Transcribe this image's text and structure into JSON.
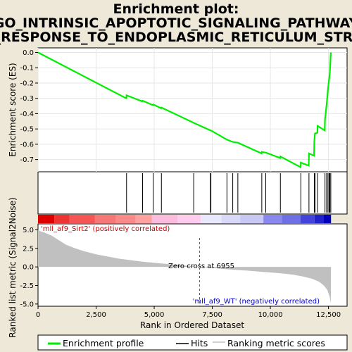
{
  "chart_data": {
    "type": "line",
    "title_line1": "Enrichment plot:",
    "title_line2": "GO_INTRINSIC_APOPTOTIC_SIGNALING_PATHWAY",
    "title_line3": "_IN_RESPONSE_TO_ENDOPLASMIC_RETICULUM_STRESS",
    "top_panel": {
      "ylabel": "Enrichment score (ES)",
      "ylim": [
        -0.78,
        0.03
      ],
      "yticks": [
        "0.0",
        "-0.1",
        "-0.2",
        "-0.3",
        "-0.4",
        "-0.5",
        "-0.6",
        "-0.7"
      ],
      "ytick_values": [
        0.0,
        -0.1,
        -0.2,
        -0.3,
        -0.4,
        -0.5,
        -0.6,
        -0.7
      ],
      "grid": true,
      "color": "#00ee00",
      "series_points": [
        [
          0,
          0.0
        ],
        [
          3800,
          -0.3
        ],
        [
          3810,
          -0.28
        ],
        [
          4480,
          -0.32
        ],
        [
          4500,
          -0.315
        ],
        [
          4950,
          -0.345
        ],
        [
          4960,
          -0.34
        ],
        [
          5300,
          -0.365
        ],
        [
          5310,
          -0.36
        ],
        [
          6700,
          -0.46
        ],
        [
          7420,
          -0.51
        ],
        [
          7440,
          -0.51
        ],
        [
          8130,
          -0.57
        ],
        [
          8380,
          -0.585
        ],
        [
          8600,
          -0.59
        ],
        [
          9620,
          -0.66
        ],
        [
          9630,
          -0.65
        ],
        [
          9800,
          -0.655
        ],
        [
          10420,
          -0.69
        ],
        [
          10430,
          -0.68
        ],
        [
          11300,
          -0.75
        ],
        [
          11310,
          -0.72
        ],
        [
          11650,
          -0.74
        ],
        [
          11660,
          -0.66
        ],
        [
          11880,
          -0.675
        ],
        [
          11890,
          -0.58
        ],
        [
          11920,
          -0.53
        ],
        [
          12020,
          -0.525
        ],
        [
          12030,
          -0.48
        ],
        [
          12340,
          -0.51
        ],
        [
          12350,
          -0.44
        ],
        [
          12420,
          -0.34
        ],
        [
          12480,
          -0.24
        ],
        [
          12560,
          -0.13
        ],
        [
          12600,
          0.0
        ]
      ]
    },
    "hits_panel": {
      "hit_positions": [
        3810,
        4500,
        4960,
        5310,
        6700,
        7420,
        7440,
        8130,
        8380,
        8600,
        9630,
        9800,
        10430,
        11310,
        11660,
        11890,
        11920,
        12030,
        12350,
        12420,
        12480,
        12530,
        12560,
        12600
      ]
    },
    "bottom_panel": {
      "ylabel": "Ranked list metric (Signal2Noise)",
      "xlabel": "Rank in Ordered Dataset",
      "xlim": [
        0,
        13300
      ],
      "ylim": [
        -5.3,
        5.8
      ],
      "xticks": [
        "0",
        "2,500",
        "5,000",
        "7,500",
        "10,000",
        "12,500"
      ],
      "xtick_values": [
        0,
        2500,
        5000,
        7500,
        10000,
        12500
      ],
      "yticks": [
        "5.0",
        "2.5",
        "0.0",
        "-2.5",
        "-5.0"
      ],
      "ytick_values": [
        5.0,
        2.5,
        0.0,
        -2.5,
        -5.0
      ],
      "metric_curve": [
        [
          0,
          5.0
        ],
        [
          100,
          4.8
        ],
        [
          300,
          4.6
        ],
        [
          600,
          4.2
        ],
        [
          900,
          3.6
        ],
        [
          1200,
          3.0
        ],
        [
          1600,
          2.5
        ],
        [
          2000,
          2.1
        ],
        [
          2500,
          1.7
        ],
        [
          3000,
          1.4
        ],
        [
          3500,
          1.1
        ],
        [
          4000,
          0.9
        ],
        [
          4500,
          0.7
        ],
        [
          5000,
          0.55
        ],
        [
          5500,
          0.4
        ],
        [
          6000,
          0.25
        ],
        [
          6500,
          0.12
        ],
        [
          6955,
          0.0
        ],
        [
          7500,
          -0.15
        ],
        [
          8000,
          -0.28
        ],
        [
          8500,
          -0.4
        ],
        [
          9000,
          -0.5
        ],
        [
          9500,
          -0.62
        ],
        [
          10000,
          -0.75
        ],
        [
          10500,
          -0.88
        ],
        [
          11000,
          -1.05
        ],
        [
          11400,
          -1.3
        ],
        [
          11800,
          -1.6
        ],
        [
          12100,
          -2.0
        ],
        [
          12300,
          -2.5
        ],
        [
          12450,
          -3.1
        ],
        [
          12550,
          -4.0
        ],
        [
          12600,
          -4.9
        ],
        [
          12610,
          0.0
        ]
      ],
      "zero_cross_label": "Zero cross at 6955",
      "zero_cross_value": 6955,
      "pos_label": "'mll_af9_Sirt2' (positively correlated)",
      "neg_label": "'mll_af9_WT' (negatively correlated)"
    },
    "legend": [
      {
        "label": "Enrichment profile",
        "color": "#00ee00"
      },
      {
        "label": "Hits",
        "color": "#000000"
      },
      {
        "label": "Ranking metric scores",
        "color": "#c0c0c0"
      }
    ]
  }
}
